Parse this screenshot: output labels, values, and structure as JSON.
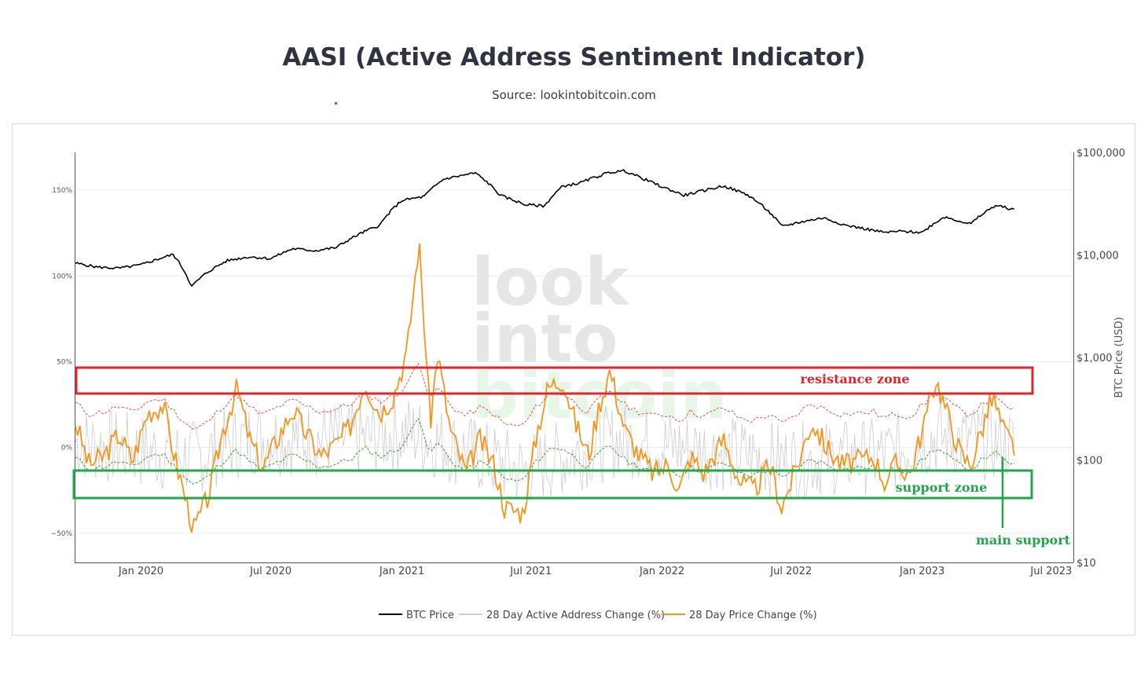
{
  "header": {
    "title": "AASI (Active Address Sentiment Indicator)",
    "subtitle": "Source: lookintobitcoin.com"
  },
  "watermark": {
    "line1": "look",
    "line2": "into",
    "line3": "bitcoin"
  },
  "annotations": {
    "resistance_label": "resistance zone",
    "support_label": "support zone",
    "main_support_label": "main support",
    "resistance_color": "#e0242b",
    "support_color": "#21a64a"
  },
  "chart_data": {
    "type": "line",
    "title": "AASI (Active Address Sentiment Indicator)",
    "subtitle": "Source: lookintobitcoin.com",
    "x_ticks": [
      "Jan 2020",
      "Jul 2020",
      "Jan 2021",
      "Jul 2021",
      "Jan 2022",
      "Jul 2022",
      "Jan 2023",
      "Jul 2023"
    ],
    "y_left_ticks": [
      "−50%",
      "0%",
      "50%",
      "100%",
      "150%"
    ],
    "y_left_range": [
      -67,
      172
    ],
    "y_right_ticks": [
      "$10",
      "$100",
      "$1,000",
      "$10,000",
      "$100,000"
    ],
    "y_right_title": "BTC Price (USD)",
    "y_right_scale": "log",
    "y_right_range": [
      10,
      100000
    ],
    "grid": true,
    "legend_position": "bottom",
    "legend": [
      "BTC Price",
      "28 Day Active Address Change (%)",
      "28 Day Price Change (%)"
    ],
    "colors": {
      "btc_price": "#000000",
      "active_address": "#cccccc",
      "price_change": "#f7931a",
      "upper_band": "#e05050",
      "lower_band": "#3a9a3a"
    },
    "series": [
      {
        "name": "BTC Price",
        "axis": "right",
        "x": [
          "2019-10-01",
          "2019-11-01",
          "2019-12-01",
          "2020-01-01",
          "2020-02-15",
          "2020-03-12",
          "2020-04-01",
          "2020-05-01",
          "2020-06-01",
          "2020-07-01",
          "2020-08-01",
          "2020-09-01",
          "2020-10-01",
          "2020-11-01",
          "2020-12-01",
          "2021-01-01",
          "2021-02-01",
          "2021-03-01",
          "2021-04-14",
          "2021-05-19",
          "2021-06-22",
          "2021-07-20",
          "2021-08-15",
          "2021-09-07",
          "2021-10-20",
          "2021-11-10",
          "2021-12-01",
          "2022-01-01",
          "2022-02-01",
          "2022-03-28",
          "2022-05-01",
          "2022-06-18",
          "2022-07-15",
          "2022-08-15",
          "2022-09-15",
          "2022-11-09",
          "2022-12-01",
          "2023-01-01",
          "2023-02-01",
          "2023-03-10",
          "2023-04-14",
          "2023-05-01",
          "2023-05-10"
        ],
        "values": [
          8300,
          7600,
          7400,
          8000,
          10100,
          4900,
          6600,
          8800,
          9600,
          9200,
          11500,
          11000,
          11800,
          15800,
          19500,
          34000,
          37000,
          55000,
          63000,
          38000,
          31000,
          30000,
          47000,
          50000,
          64000,
          66000,
          57000,
          46000,
          38000,
          47000,
          38500,
          18900,
          21000,
          23000,
          19500,
          16500,
          17000,
          16600,
          23500,
          20000,
          30400,
          28600,
          27500
        ]
      },
      {
        "name": "28 Day Price Change (%)",
        "axis": "left",
        "x": [
          "2019-10-01",
          "2019-10-20",
          "2019-11-10",
          "2019-12-01",
          "2019-12-20",
          "2020-01-10",
          "2020-02-01",
          "2020-02-20",
          "2020-03-15",
          "2020-04-05",
          "2020-04-25",
          "2020-05-15",
          "2020-06-01",
          "2020-06-20",
          "2020-07-10",
          "2020-08-01",
          "2020-08-20",
          "2020-09-10",
          "2020-10-01",
          "2020-10-20",
          "2020-11-10",
          "2020-12-01",
          "2020-12-20",
          "2021-01-08",
          "2021-01-25",
          "2021-02-10",
          "2021-02-20",
          "2021-03-10",
          "2021-04-01",
          "2021-04-20",
          "2021-05-10",
          "2021-05-25",
          "2021-06-20",
          "2021-07-10",
          "2021-07-25",
          "2021-08-15",
          "2021-09-01",
          "2021-09-20",
          "2021-10-05",
          "2021-10-20",
          "2021-11-10",
          "2021-12-01",
          "2021-12-20",
          "2022-01-10",
          "2022-01-25",
          "2022-02-10",
          "2022-03-01",
          "2022-03-28",
          "2022-04-20",
          "2022-05-10",
          "2022-06-01",
          "2022-06-18",
          "2022-07-10",
          "2022-07-30",
          "2022-08-20",
          "2022-09-10",
          "2022-10-01",
          "2022-10-25",
          "2022-11-09",
          "2022-11-25",
          "2022-12-15",
          "2023-01-01",
          "2023-01-20",
          "2023-02-05",
          "2023-02-25",
          "2023-03-10",
          "2023-03-25",
          "2023-04-10",
          "2023-04-25",
          "2023-05-10"
        ],
        "values": [
          15,
          -10,
          -5,
          8,
          -8,
          20,
          25,
          -10,
          -48,
          -28,
          10,
          35,
          5,
          -12,
          5,
          22,
          8,
          -5,
          2,
          12,
          38,
          20,
          30,
          55,
          120,
          15,
          55,
          10,
          -15,
          5,
          -10,
          -35,
          -38,
          10,
          35,
          40,
          15,
          -5,
          25,
          45,
          10,
          -5,
          -15,
          -10,
          -25,
          -5,
          -15,
          5,
          -20,
          -25,
          -10,
          -35,
          -10,
          15,
          0,
          -10,
          -8,
          -5,
          -20,
          -10,
          -15,
          10,
          40,
          20,
          -5,
          -10,
          10,
          30,
          10,
          0
        ]
      },
      {
        "name": "28 Day Active Address Change (%)",
        "axis": "left",
        "x": [
          "2019-10-01",
          "2020-03-15",
          "2020-06-01",
          "2020-11-01",
          "2021-01-10",
          "2021-06-20",
          "2021-11-01",
          "2022-06-18",
          "2022-11-10",
          "2023-01-20",
          "2023-05-10"
        ],
        "values": [
          10,
          -20,
          20,
          15,
          30,
          -45,
          15,
          -25,
          -15,
          20,
          5
        ],
        "note_range": [
          -50,
          50
        ]
      }
    ]
  },
  "legend": {
    "btc_price": "BTC Price",
    "active_address": "28 Day Active Address Change (%)",
    "price_change": "28 Day Price Change (%)"
  }
}
